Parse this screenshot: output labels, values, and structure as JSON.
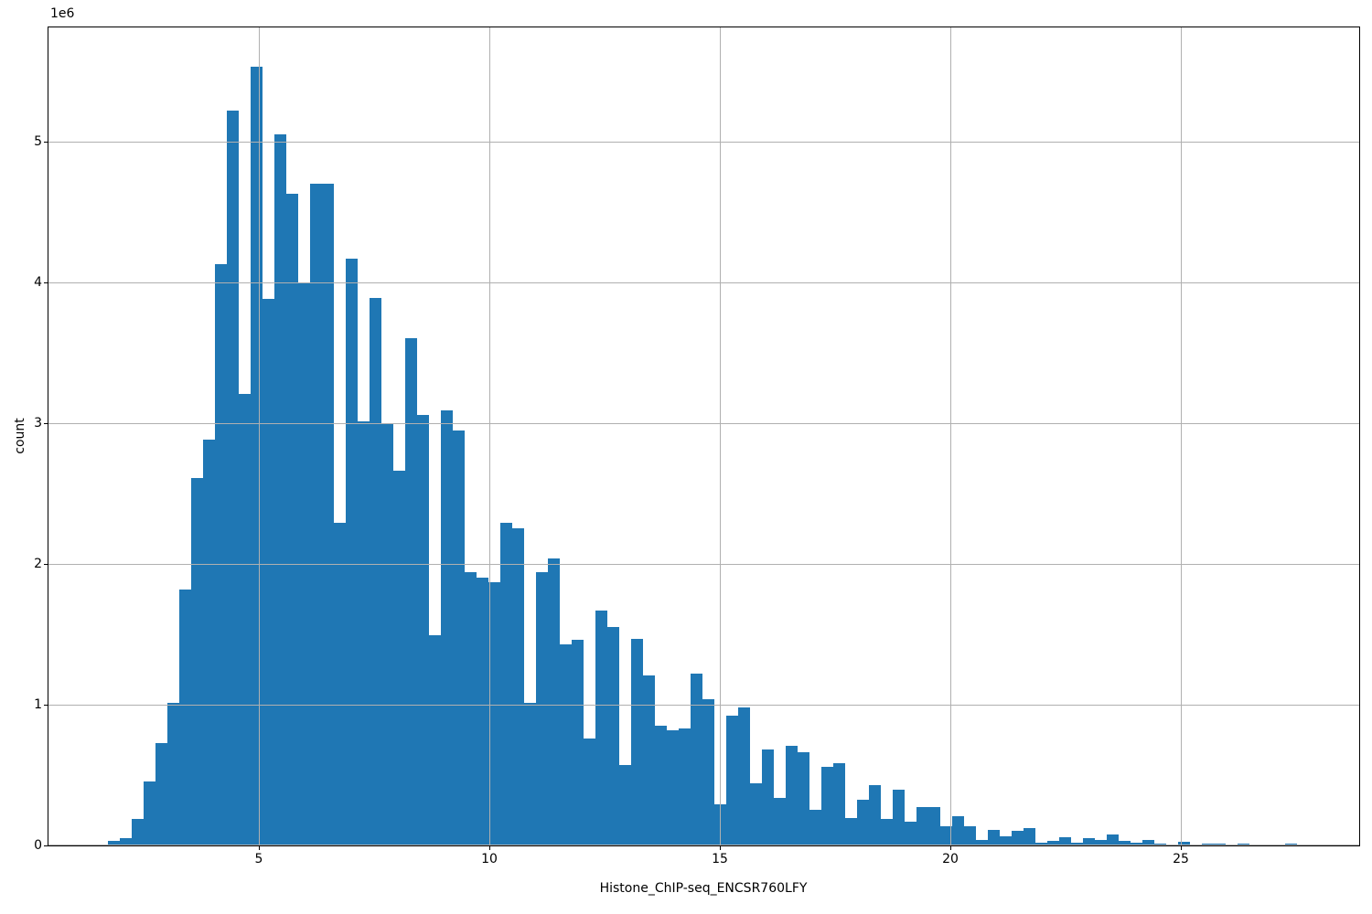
{
  "chart_data": {
    "type": "histogram",
    "title": "",
    "xlabel": "Histone_ChIP-seq_ENCSR760LFY",
    "ylabel": "count",
    "offset_text": "1e6",
    "y_unit_multiplier": 1000000,
    "bar_color": "#1f77b4",
    "grid_color": "#b0b0b0",
    "grid": true,
    "legend": null,
    "xlim": [
      0.44,
      28.86
    ],
    "ylim_1e6": [
      0,
      5.81
    ],
    "x_ticks": [
      {
        "value": 5,
        "label": "5"
      },
      {
        "value": 10,
        "label": "10"
      },
      {
        "value": 15,
        "label": "15"
      },
      {
        "value": 20,
        "label": "20"
      },
      {
        "value": 25,
        "label": "25"
      }
    ],
    "y_ticks": [
      {
        "value": 0,
        "label": "0"
      },
      {
        "value": 1,
        "label": "1"
      },
      {
        "value": 2,
        "label": "2"
      },
      {
        "value": 3,
        "label": "3"
      },
      {
        "value": 4,
        "label": "4"
      },
      {
        "value": 5,
        "label": "5"
      }
    ],
    "bins": {
      "start": 1.72,
      "width": 0.2579,
      "count": 100
    },
    "values_1e6": [
      0.03,
      0.05,
      0.19,
      0.455,
      0.725,
      1.01,
      1.82,
      2.61,
      2.88,
      4.13,
      5.22,
      3.21,
      5.53,
      3.88,
      5.05,
      4.63,
      4.0,
      4.7,
      4.7,
      2.29,
      4.17,
      3.01,
      3.89,
      3.0,
      2.66,
      3.6,
      3.06,
      1.49,
      3.09,
      2.95,
      1.94,
      1.9,
      1.87,
      2.29,
      2.25,
      1.01,
      1.94,
      2.04,
      1.43,
      1.46,
      0.76,
      1.67,
      1.55,
      0.57,
      1.47,
      1.21,
      0.85,
      0.82,
      0.83,
      1.22,
      1.04,
      0.29,
      0.92,
      0.98,
      0.44,
      0.68,
      0.335,
      0.71,
      0.665,
      0.25,
      0.56,
      0.585,
      0.195,
      0.325,
      0.43,
      0.19,
      0.395,
      0.17,
      0.275,
      0.27,
      0.135,
      0.21,
      0.135,
      0.04,
      0.108,
      0.065,
      0.101,
      0.125,
      0.02,
      0.035,
      0.058,
      0.021,
      0.054,
      0.041,
      0.08,
      0.032,
      0.017,
      0.039,
      0.015,
      0.008,
      0.025,
      0.005,
      0.015,
      0.015,
      0.005,
      0.013,
      0.003,
      0.003,
      0.003,
      0.013
    ]
  }
}
